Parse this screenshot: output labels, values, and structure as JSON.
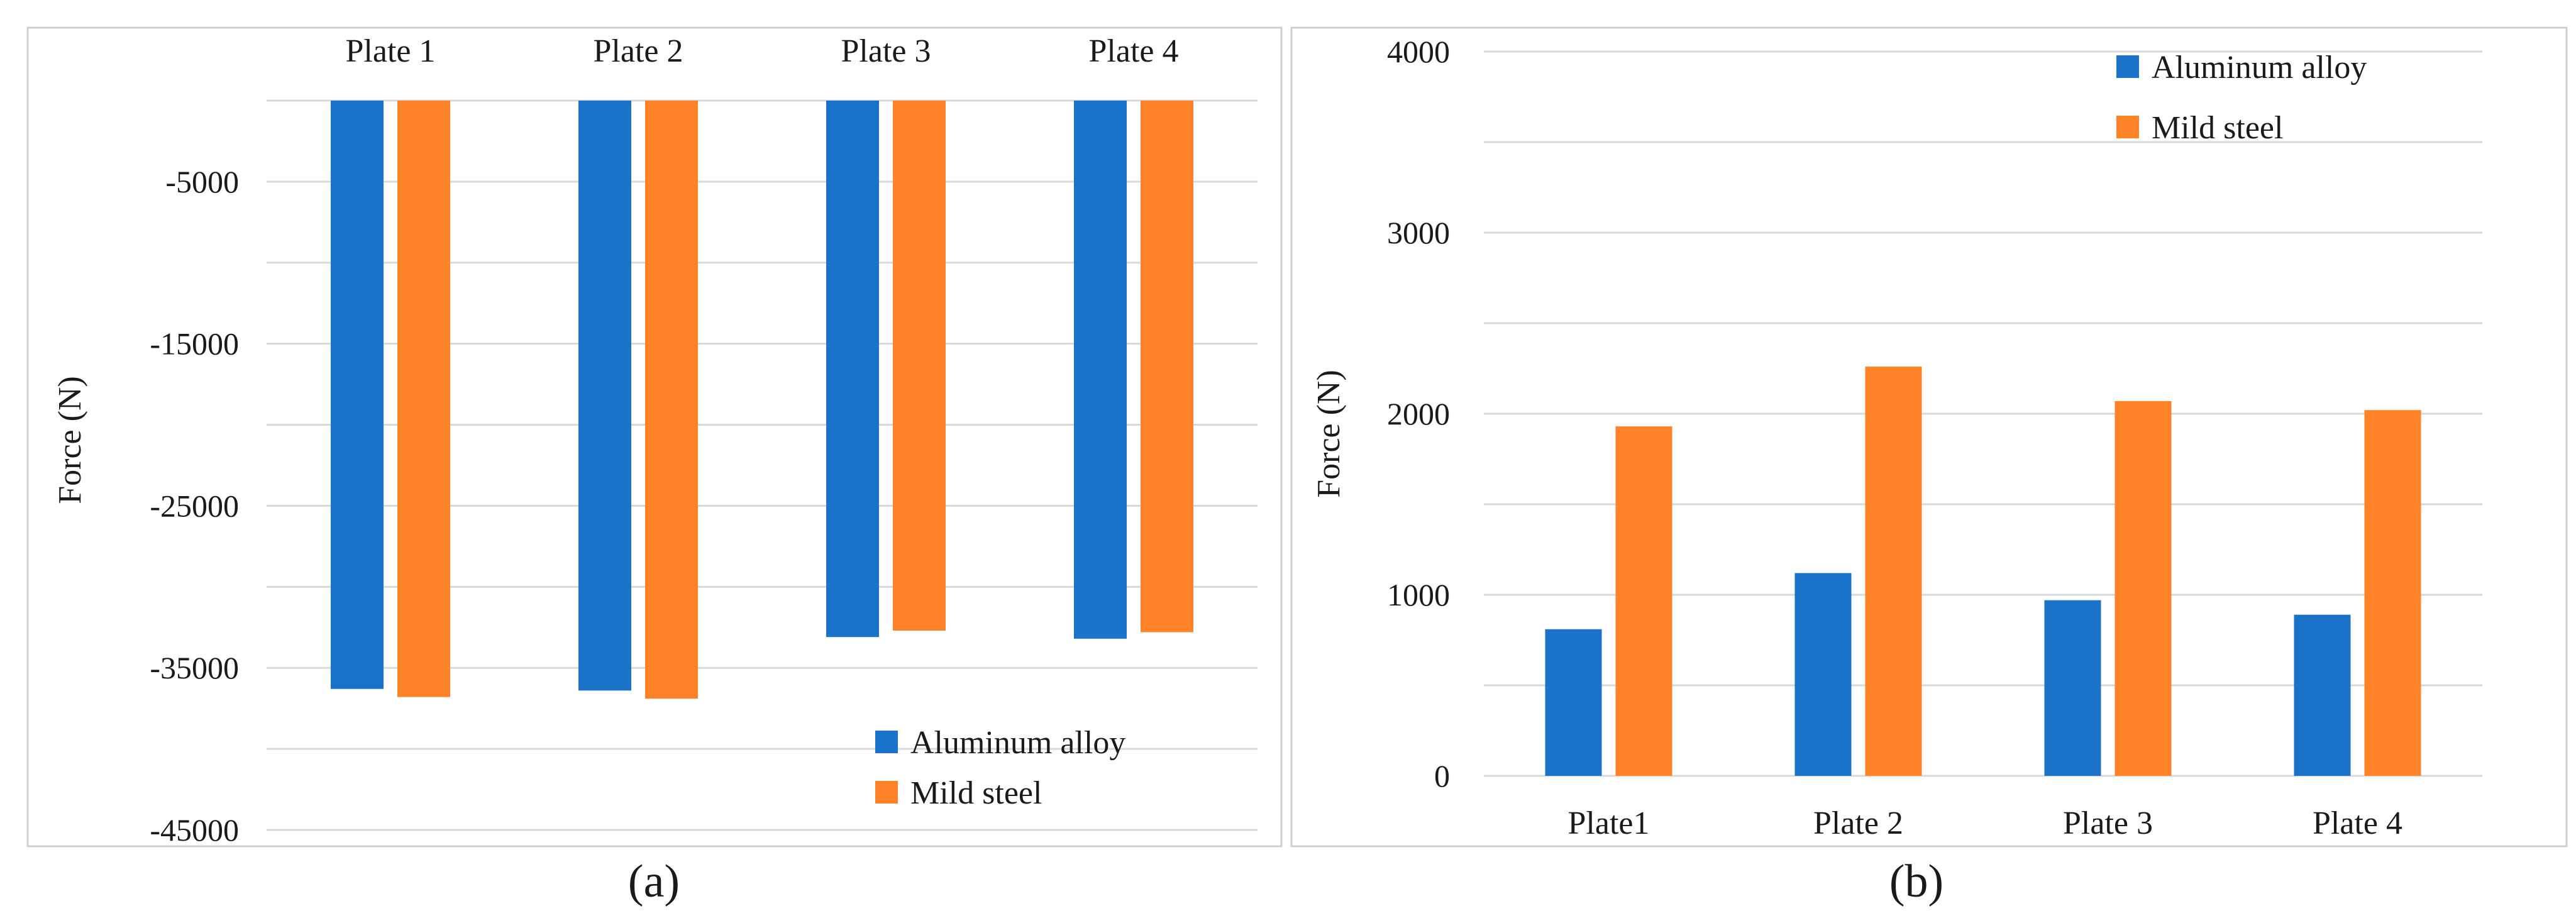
{
  "colors": {
    "aluminum": "#1a73c9",
    "steel": "#fe8227",
    "grid": "#d9d9d9",
    "frame": "#d0d0d0"
  },
  "chart_data": [
    {
      "type": "bar",
      "panel_label": "(a)",
      "title": "",
      "xlabel": "",
      "ylabel": "Force (N)",
      "ylim": [
        -45000,
        0
      ],
      "yticks": [
        -5000,
        -15000,
        -25000,
        -35000,
        -45000
      ],
      "grid": true,
      "category_axis_position": "top",
      "legend_position": "bottom-right",
      "categories": [
        "Plate 1",
        "Plate 2",
        "Plate 3",
        "Plate 4"
      ],
      "series": [
        {
          "name": "Aluminum alloy",
          "color": "#1a73c9",
          "values": [
            -36300,
            -36400,
            -33100,
            -33200
          ]
        },
        {
          "name": "Mild steel",
          "color": "#fe8227",
          "values": [
            -36800,
            -36900,
            -32700,
            -32800
          ]
        }
      ]
    },
    {
      "type": "bar",
      "panel_label": "(b)",
      "title": "",
      "xlabel": "",
      "ylabel": "Force (N)",
      "ylim": [
        0,
        4000
      ],
      "yticks": [
        0,
        1000,
        2000,
        3000,
        4000
      ],
      "grid": true,
      "category_axis_position": "bottom",
      "legend_position": "top-right",
      "categories": [
        "Plate1",
        "Plate 2",
        "Plate 3",
        "Plate 4"
      ],
      "series": [
        {
          "name": "Aluminum alloy",
          "color": "#1a73c9",
          "values": [
            810,
            1120,
            970,
            890
          ]
        },
        {
          "name": "Mild steel",
          "color": "#fe8227",
          "values": [
            1930,
            2260,
            2070,
            2020
          ]
        }
      ]
    }
  ]
}
